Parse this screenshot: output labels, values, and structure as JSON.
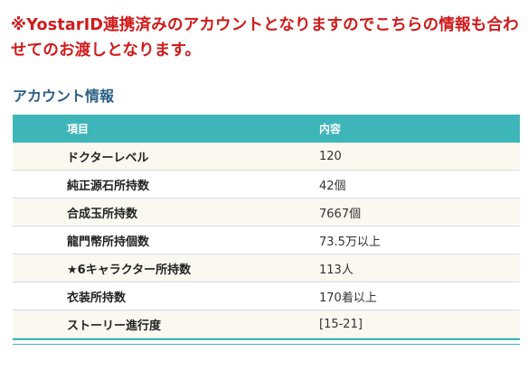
{
  "notice": "※YostarID連携済みのアカウントとなりますのでこちらの情報も合わせてのお渡しとなります。",
  "section_title": "アカウント情報",
  "table": {
    "headers": [
      "項目",
      "内容"
    ],
    "rows": [
      {
        "item": "ドクターレベル",
        "value": "120"
      },
      {
        "item": "純正源石所持数",
        "value": "42個"
      },
      {
        "item": "合成玉所持数",
        "value": "7667個"
      },
      {
        "item": "龍門幣所持個数",
        "value": "73.5万以上"
      },
      {
        "item": "★6キャラクター所持数",
        "value": "113人"
      },
      {
        "item": "衣装所持数",
        "value": "170着以上"
      },
      {
        "item": "ストーリー進行度",
        "value": "[15-21]"
      }
    ]
  },
  "colors": {
    "notice": "#d01a1a",
    "section_title": "#2c5f87",
    "header_bg": "#3eb5b9",
    "row_alt_bg": "#fbf8ef"
  }
}
